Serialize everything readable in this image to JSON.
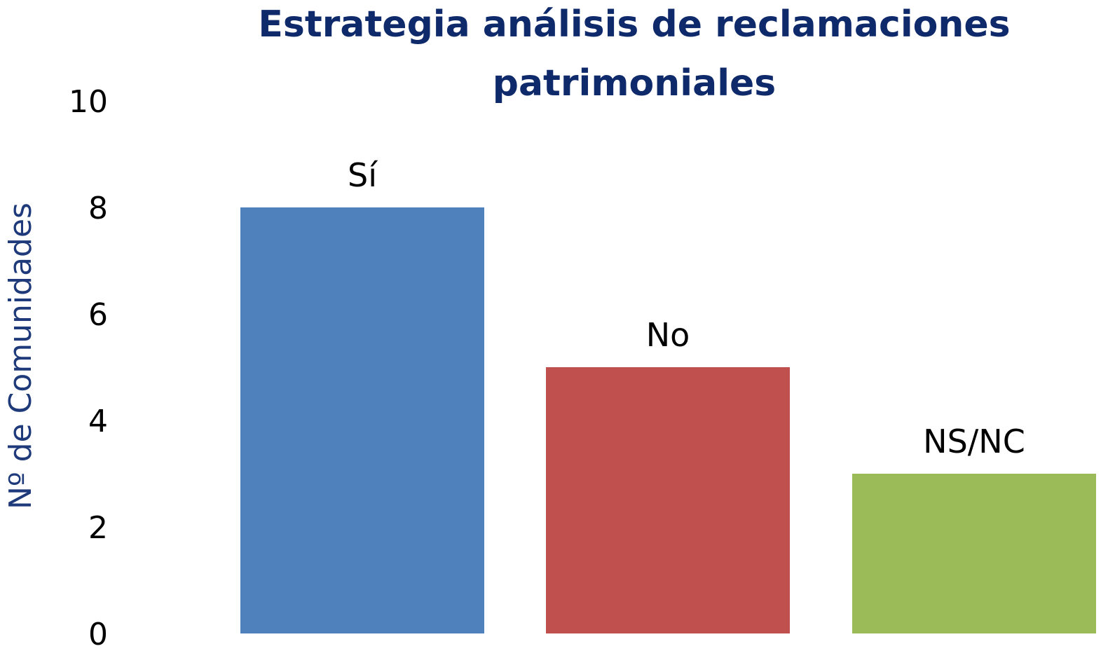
{
  "chart_data": {
    "type": "bar",
    "title": "Estrategia análisis de reclamaciones patrimoniales",
    "title_lines": [
      "Estrategia análisis de reclamaciones",
      "patrimoniales"
    ],
    "xlabel": "",
    "ylabel": "Nº de Comunidades",
    "categories": [
      "Sí",
      "No",
      "NS/NC"
    ],
    "values": [
      8,
      5,
      3
    ],
    "bar_colors": [
      "#4f81bd",
      "#c0504d",
      "#9bbb59"
    ],
    "ylim": [
      0,
      10
    ],
    "yticks": [
      "0",
      "2",
      "4",
      "6",
      "8",
      "10"
    ],
    "grid": false,
    "legend": "none",
    "title_color": "#0f2a6b",
    "ylabel_color": "#1f3a7a",
    "text_color": "#000000"
  }
}
